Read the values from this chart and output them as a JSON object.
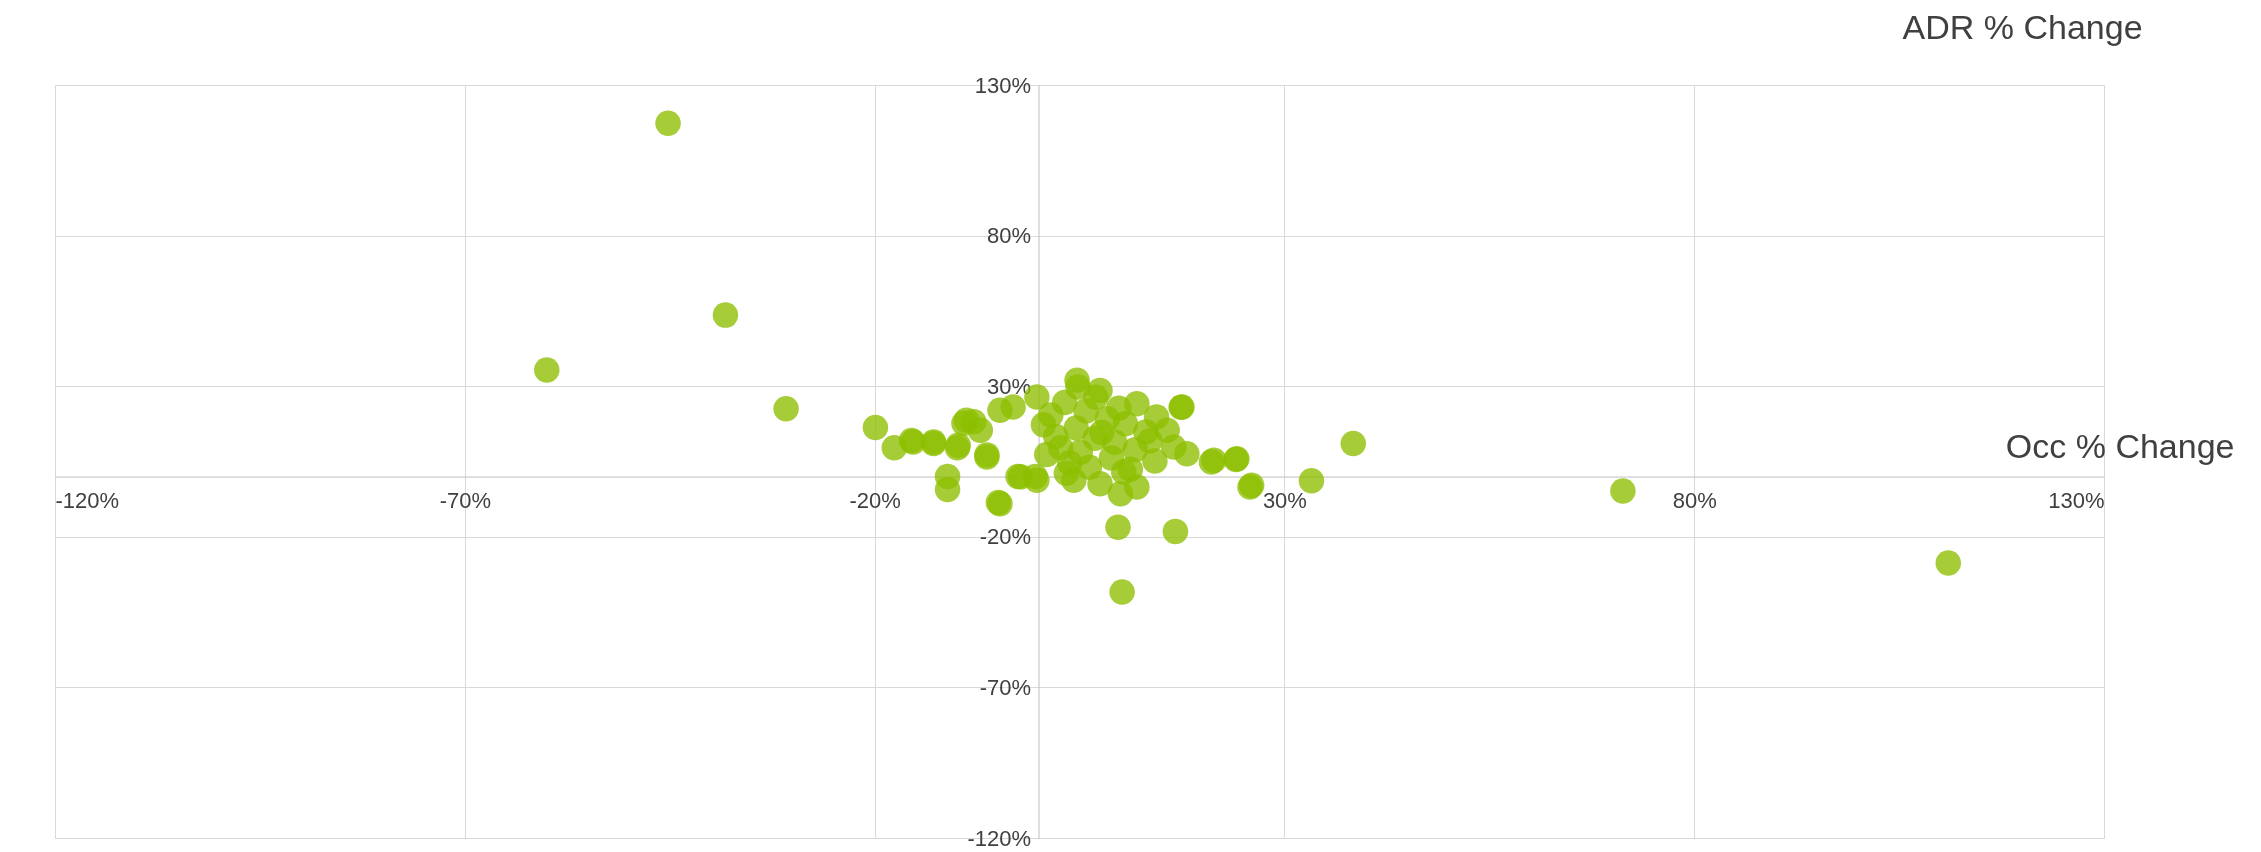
{
  "chart_data": {
    "type": "scatter",
    "ylabel": "ADR % Change",
    "xlabel": "Occ % Change",
    "xlim": [
      -120,
      130
    ],
    "ylim": [
      -120,
      130
    ],
    "xticks": [
      {
        "value": -120,
        "label": "-120%"
      },
      {
        "value": -70,
        "label": "-70%"
      },
      {
        "value": -20,
        "label": "-20%"
      },
      {
        "value": 30,
        "label": "30%"
      },
      {
        "value": 80,
        "label": "80%"
      },
      {
        "value": 130,
        "label": "130%"
      }
    ],
    "yticks": [
      {
        "value": -120,
        "label": "-120%"
      },
      {
        "value": -70,
        "label": "-70%"
      },
      {
        "value": -20,
        "label": "-20%"
      },
      {
        "value": 30,
        "label": "30%"
      },
      {
        "value": 80,
        "label": "80%"
      },
      {
        "value": 130,
        "label": "130%"
      }
    ],
    "grid": true,
    "legend": false,
    "marker": "circle",
    "series": [
      {
        "color": "#8dbf00",
        "x": [
          -45.2,
          -38.2,
          -60,
          -30.8,
          -19.9,
          -17.6,
          -15.5,
          -12.8,
          -9.9,
          -9.1,
          -7.9,
          -6.3,
          -11.1,
          -11.1,
          -4.9,
          -2.5,
          -0.4,
          4.8,
          7,
          9.7,
          10.2,
          16.7,
          17.4,
          21.1,
          24.1,
          26,
          33.3,
          38.4,
          71.3,
          111,
          -15.3,
          -12.8,
          -9.8,
          -8.8,
          -4.7,
          -6.3,
          -7.1,
          -4.7,
          -3.1,
          -0.2,
          -2.2,
          -0.2,
          4.7,
          7.5,
          17.5,
          12,
          14.4,
          15.7,
          16.5,
          18.1,
          21.4,
          24.2,
          25.8,
          10,
          12,
          7.5,
          4.3,
          1.5,
          3.2,
          5.8,
          8.4,
          10.6,
          13.1,
          2.1,
          4.6,
          6.9,
          9.3,
          11.8,
          14.2,
          1,
          3.8,
          6.2,
          8.9,
          11.2,
          2.7,
          5.1,
          7.7,
          10.4,
          13.6,
          0.6,
          9.8,
          3.4
        ],
        "values": [
          117.3,
          53.6,
          35.4,
          22.5,
          16.3,
          9.6,
          12,
          11,
          9.6,
          17.7,
          18.2,
          7.2,
          0,
          -4.3,
          -8.6,
          0,
          0,
          29.7,
          26.3,
          -16.8,
          -38.3,
          -18.2,
          23,
          4.8,
          5.7,
          -2.9,
          -1.4,
          11,
          -4.8,
          -28.7,
          11.5,
          11.5,
          10.4,
          18.7,
          -9,
          6.5,
          15.4,
          22,
          23.1,
          26.4,
          -0.1,
          -1.2,
          32,
          28.6,
          23.1,
          24.2,
          19.8,
          15.4,
          9.8,
          7.6,
          5.4,
          5.9,
          -3.5,
          -5.7,
          -3.5,
          -2.4,
          -1.2,
          20.4,
          24.6,
          21.8,
          19.2,
          17.5,
          14.8,
          13.3,
          16.1,
          12.7,
          11.4,
          8.9,
          5.2,
          7.3,
          4.5,
          3.1,
          6.2,
          2.4,
          9.6,
          8.1,
          14.6,
          1.5,
          11.9,
          17.2,
          22.7,
          1.1
        ]
      }
    ]
  }
}
